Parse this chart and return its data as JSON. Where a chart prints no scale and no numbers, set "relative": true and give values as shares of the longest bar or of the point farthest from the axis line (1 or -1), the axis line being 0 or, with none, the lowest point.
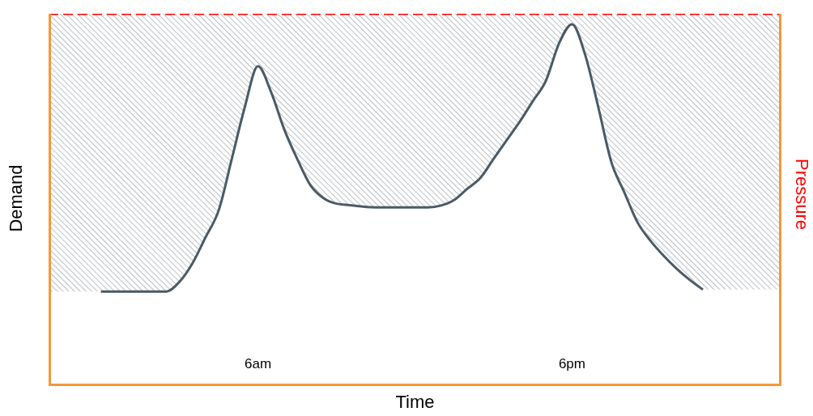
{
  "chart_data": {
    "type": "line",
    "xlabel": "Time",
    "ylabel": "Demand",
    "y2label": "Pressure",
    "relative": true,
    "tick_labels": "x",
    "marker": "none",
    "categories": [
      null,
      null,
      null,
      null,
      null,
      null,
      null,
      null,
      null,
      null,
      null,
      null,
      null,
      null,
      null,
      null,
      "6am",
      null,
      null,
      null,
      null,
      null,
      null,
      null,
      null,
      null,
      null,
      null,
      null,
      null,
      null,
      null,
      null,
      null,
      null,
      null,
      null,
      null,
      null,
      null,
      "6pm",
      null,
      null,
      null,
      null,
      null,
      null,
      null,
      null,
      null,
      null,
      null,
      null,
      null,
      null,
      null,
      null
    ],
    "series": [
      {
        "color": "#4a5a66",
        "values": [
          null,
          null,
          null,
          null,
          0.254,
          0.254,
          0.254,
          0.254,
          0.254,
          0.254,
          0.28,
          0.33,
          0.4,
          0.472,
          0.61,
          0.75,
          0.859,
          0.79,
          0.69,
          0.61,
          0.54,
          0.505,
          0.49,
          0.486,
          0.482,
          0.48,
          0.48,
          0.48,
          0.48,
          0.48,
          0.485,
          0.5,
          0.53,
          0.559,
          0.61,
          0.66,
          0.71,
          0.765,
          0.82,
          0.92,
          0.972,
          0.89,
          0.75,
          0.602,
          0.52,
          0.44,
          0.39,
          0.35,
          0.315,
          0.285,
          0.259,
          null,
          null,
          null,
          null,
          null,
          null
        ],
        "lower": [
          0.254,
          0.254,
          0.254,
          0.254,
          0.254,
          0.254,
          0.254,
          0.254,
          0.254,
          0.254,
          0.28,
          0.33,
          0.4,
          0.472,
          0.61,
          0.75,
          0.859,
          0.79,
          0.69,
          0.61,
          0.54,
          0.505,
          0.49,
          0.486,
          0.482,
          0.48,
          0.48,
          0.48,
          0.48,
          0.48,
          0.485,
          0.5,
          0.53,
          0.559,
          0.61,
          0.66,
          0.71,
          0.765,
          0.82,
          0.92,
          0.972,
          0.89,
          0.75,
          0.602,
          0.52,
          0.44,
          0.39,
          0.35,
          0.315,
          0.285,
          0.259,
          0.259,
          0.259,
          0.259,
          0.259,
          0.259,
          0.259
        ],
        "upper": [
          1,
          1,
          1,
          1,
          1,
          1,
          1,
          1,
          1,
          1,
          1,
          1,
          1,
          1,
          1,
          1,
          1,
          1,
          1,
          1,
          1,
          1,
          1,
          1,
          1,
          1,
          1,
          1,
          1,
          1,
          1,
          1,
          1,
          1,
          1,
          1,
          1,
          1,
          1,
          1,
          1,
          1,
          1,
          1,
          1,
          1,
          1,
          1,
          1,
          1,
          1,
          1,
          1,
          1,
          1,
          1,
          1
        ]
      },
      {
        "color": "#ff0000",
        "line_style": "dashed",
        "values": [
          1,
          1,
          1,
          1,
          1,
          1,
          1,
          1,
          1,
          1,
          1,
          1,
          1,
          1,
          1,
          1,
          1,
          1,
          1,
          1,
          1,
          1,
          1,
          1,
          1,
          1,
          1,
          1,
          1,
          1,
          1,
          1,
          1,
          1,
          1,
          1,
          1,
          1,
          1,
          1,
          1,
          1,
          1,
          1,
          1,
          1,
          1,
          1,
          1,
          1,
          1,
          1,
          1,
          1,
          1,
          1,
          1
        ]
      }
    ]
  }
}
